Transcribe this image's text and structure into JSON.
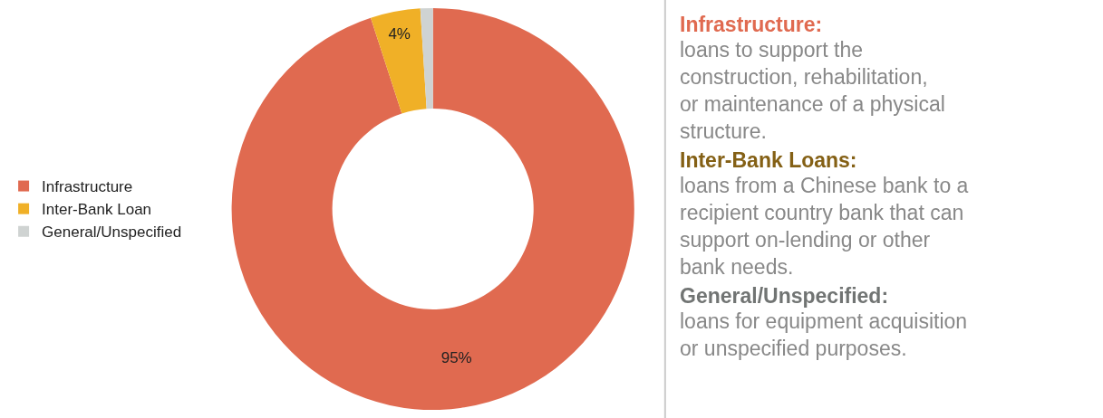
{
  "chart_data": [
    {
      "type": "donut",
      "categories": [
        "Infrastructure",
        "Inter-Bank Loan",
        "General/Unspecified"
      ],
      "values": [
        95,
        4,
        1
      ],
      "value_labels": [
        "95%",
        "4%",
        null
      ],
      "colors": [
        "#e06a50",
        "#f0b027",
        "#cfd3d2"
      ],
      "legend": "left"
    },
    {
      "type": "other",
      "annotations": [
        "Infrastructure:",
        "loans to support the construction, rehabilitation, or maintenance of a physical structure.",
        "Inter-Bank Loans:",
        "loans from a Chinese bank to a recipient country bank that can support on-lending or other bank needs.",
        "General/Unspecified:",
        "loans for equipment acquisition or unspecified purposes."
      ]
    }
  ]
}
